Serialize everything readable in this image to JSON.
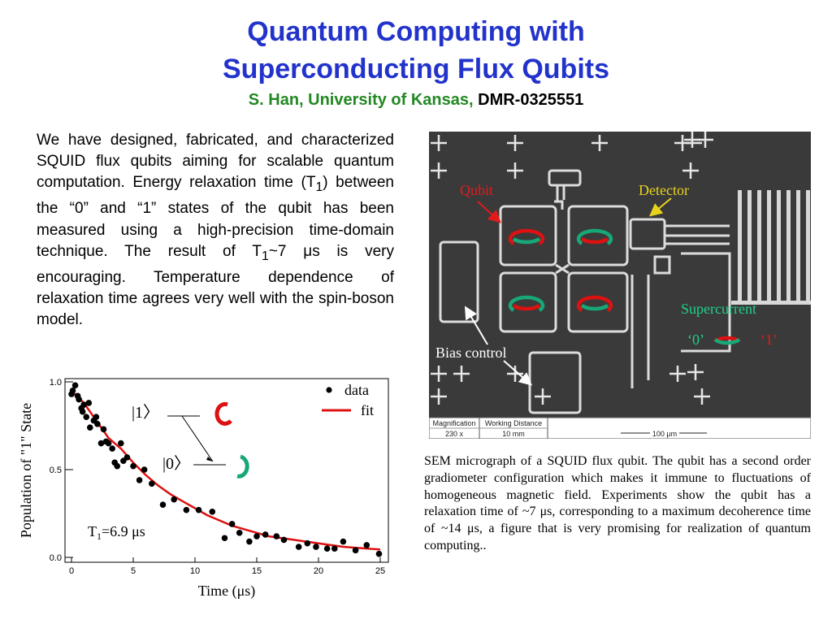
{
  "title": {
    "line1": "Quantum Computing with",
    "line2": "Superconducting Flux Qubits"
  },
  "byline": {
    "author": "S. Han, University of Kansas,",
    "grant": "DMR-0325551"
  },
  "summary": {
    "part1": "We have designed, fabricated, and characterized SQUID flux qubits aiming for scalable quantum computation. Energy relaxation time (T",
    "sub1": "1",
    "part2": ") between the “0” and “1” states of the qubit has been measured using a high-precision time-domain technique. The result of T",
    "sub2": "1",
    "part3": "~7 μs is very encouraging. Temperature dependence of relaxation time agrees very well with the spin-boson model."
  },
  "micrograph": {
    "labels": {
      "qubit": "Qubit",
      "detector": "Detector",
      "supercurrent": "Supercurrent",
      "state0": "‘0’",
      "state1": "‘1’",
      "bias": "Bias control"
    },
    "scalebar": {
      "magnification_label": "Magnification",
      "magnification_value": "230 x",
      "wd_label": "Working Distance",
      "wd_value": "10 mm",
      "length": "100 μm"
    },
    "colors": {
      "label": "#e11b1b",
      "detector": "#e8d21c",
      "supercurrent": "#1fd08a",
      "arrow_red": "#dd1111",
      "arrow_green": "#18a878"
    }
  },
  "caption": "SEM micrograph of a SQUID flux qubit. The qubit has a second order gradiometer configuration which makes it immune to fluctuations of homogeneous magnetic field. Experiments show the qubit has a relaxation time of ~7 μs, corresponding to a maximum decoherence time of ~14 μs, a figure that is very promising for realization of quantum computing..",
  "chart_data": {
    "type": "scatter",
    "xlabel": "Time (μs)",
    "ylabel": "Population of \"1\" State",
    "xlim": [
      0,
      25
    ],
    "ylim": [
      0.0,
      1.0
    ],
    "xticks": [
      0,
      5,
      10,
      15,
      20,
      25
    ],
    "yticks": [
      0.0,
      0.5,
      1.0
    ],
    "ytick_labels": [
      "0.0",
      "0.5",
      "1.0"
    ],
    "legend": {
      "placement": "top-right",
      "entries": [
        "data",
        "fit"
      ]
    },
    "series": [
      {
        "name": "data",
        "kind": "points",
        "color": "#000000",
        "x": [
          0.0,
          0.1,
          0.3,
          0.5,
          0.6,
          0.8,
          0.9,
          1.0,
          1.2,
          1.4,
          1.5,
          1.8,
          2.0,
          2.1,
          2.4,
          2.6,
          2.8,
          3.0,
          3.3,
          3.5,
          3.7,
          4.0,
          4.2,
          4.5,
          5.0,
          5.5,
          5.9,
          6.5,
          7.4,
          8.3,
          9.3,
          10.3,
          11.4,
          12.4,
          13.0,
          13.6,
          14.4,
          15.0,
          15.7,
          16.6,
          17.2,
          18.4,
          19.1,
          19.8,
          20.7,
          21.3,
          22.0,
          23.0,
          23.9,
          24.9
        ],
        "y": [
          0.93,
          0.95,
          0.98,
          0.92,
          0.9,
          0.85,
          0.83,
          0.87,
          0.8,
          0.88,
          0.74,
          0.78,
          0.8,
          0.76,
          0.65,
          0.73,
          0.66,
          0.65,
          0.62,
          0.54,
          0.52,
          0.65,
          0.55,
          0.57,
          0.52,
          0.44,
          0.5,
          0.42,
          0.3,
          0.33,
          0.27,
          0.27,
          0.26,
          0.11,
          0.19,
          0.14,
          0.09,
          0.12,
          0.13,
          0.12,
          0.1,
          0.06,
          0.08,
          0.06,
          0.05,
          0.05,
          0.09,
          0.04,
          0.07,
          0.02
        ]
      },
      {
        "name": "fit",
        "kind": "line",
        "color": "#dd1111",
        "x": [
          0,
          1,
          2,
          3,
          4,
          5,
          6,
          7,
          8,
          9,
          10,
          11,
          12,
          13,
          14,
          15,
          16,
          17,
          18,
          19,
          20,
          21,
          22,
          23,
          24,
          25
        ],
        "y": [
          0.95,
          0.88,
          0.78,
          0.68,
          0.62,
          0.54,
          0.47,
          0.41,
          0.36,
          0.32,
          0.28,
          0.24,
          0.21,
          0.18,
          0.16,
          0.14,
          0.12,
          0.11,
          0.1,
          0.09,
          0.08,
          0.07,
          0.06,
          0.055,
          0.05,
          0.045
        ]
      }
    ],
    "annotations": {
      "ket1": "|1〉",
      "ket0": "|0〉",
      "t1_main": "T",
      "t1_sub": "1",
      "t1_value": "=6.9 μs"
    }
  }
}
